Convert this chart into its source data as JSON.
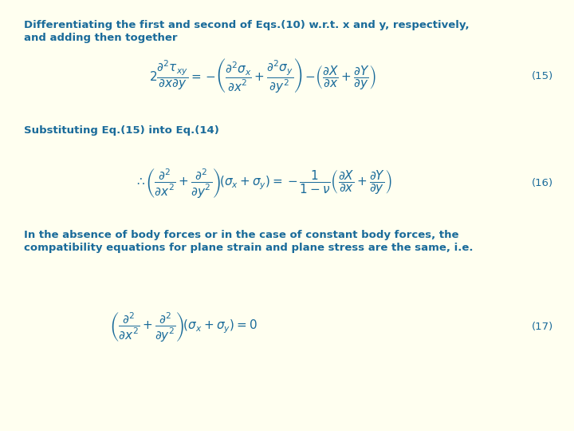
{
  "background_color": "#FFFFF0",
  "text_color": "#1a6b9a",
  "title_line1": "Differentiating the first and second of Eqs.(10) w.r.t. x and y, respectively,",
  "title_line2": "and adding then together",
  "subtitle_text": "Substituting Eq.(15) into Eq.(14)",
  "body_line1": "In the absence of body forces or in the case of constant body forces, the",
  "body_line2": "compatibility equations for plane strain and plane stress are the same, i.e.",
  "label15": "(15)",
  "label16": "(16)",
  "label17": "(17)",
  "title_fontsize": 9.5,
  "body_fontsize": 9.5,
  "eq_fontsize": 11,
  "label_fontsize": 9.5
}
